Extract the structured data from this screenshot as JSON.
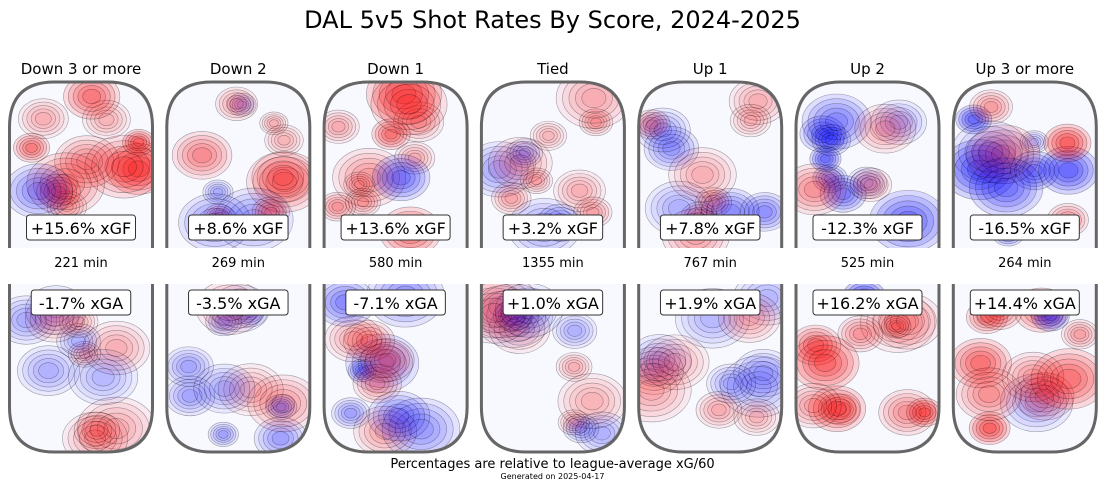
{
  "title": "DAL 5v5 Shot Rates By Score, 2024-2025",
  "footnote": "Percentages are relative to league-average xG/60",
  "generated": "Generated on 2025-04-17",
  "colors": {
    "positive": "#ff0000",
    "negative": "#0000ff",
    "rink_border": "#666666",
    "label_box_border": "#333333"
  },
  "chart_data": {
    "type": "heatmap",
    "title": "DAL 5v5 Shot Rates By Score, 2024-2025",
    "note": "Percentages are relative to league-average xG/60",
    "columns": [
      {
        "label": "Down 3 or more",
        "minutes": "221 min",
        "xgf": "+15.6% xGF",
        "xga": "-1.7% xGA",
        "xgf_value": 15.6,
        "xga_value": -1.7
      },
      {
        "label": "Down 2",
        "minutes": "269 min",
        "xgf": "+8.6% xGF",
        "xga": "-3.5% xGA",
        "xgf_value": 8.6,
        "xga_value": -3.5
      },
      {
        "label": "Down 1",
        "minutes": "580 min",
        "xgf": "+13.6% xGF",
        "xga": "-7.1% xGA",
        "xgf_value": 13.6,
        "xga_value": -7.1
      },
      {
        "label": "Tied",
        "minutes": "1355 min",
        "xgf": "+3.2% xGF",
        "xga": "+1.0% xGA",
        "xgf_value": 3.2,
        "xga_value": 1.0
      },
      {
        "label": "Up 1",
        "minutes": "767 min",
        "xgf": "+7.8% xGF",
        "xga": "+1.9% xGA",
        "xgf_value": 7.8,
        "xga_value": 1.9
      },
      {
        "label": "Up 2",
        "minutes": "525 min",
        "xgf": "-12.3% xGF",
        "xga": "+16.2% xGA",
        "xgf_value": -12.3,
        "xga_value": 16.2
      },
      {
        "label": "Up 3 or more",
        "minutes": "264 min",
        "xgf": "-16.5% xGF",
        "xga": "+14.4% xGA",
        "xgf_value": -16.5,
        "xga_value": 14.4
      }
    ]
  }
}
